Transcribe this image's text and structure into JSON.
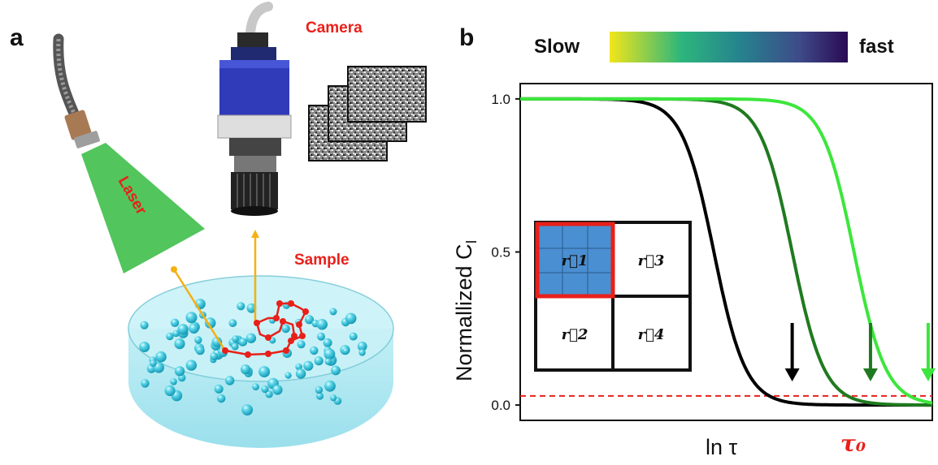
{
  "panel_a": {
    "letter": "a",
    "camera_label": "Camera",
    "laser_label": "Laser",
    "sample_label": "Sample",
    "colors": {
      "label": "#e8201a",
      "particle": "#3ec9e0",
      "trajectory": "#e8201a",
      "beam": "#f5b014",
      "laser_cone": "#3fbf4a",
      "camera_body": "#2f3bb8"
    }
  },
  "panel_b": {
    "letter": "b",
    "colorbar": {
      "left_label": "Slow",
      "right_label": "fast",
      "colors": [
        "#f2e61a",
        "#2db67c",
        "#26828e",
        "#3e4a89",
        "#2a0a52"
      ]
    },
    "grid_cells": [
      "r⃗1",
      "r⃗3",
      "r⃗2",
      "r⃗4"
    ],
    "tau_label": "τ₀",
    "chart_data": {
      "type": "line",
      "xlabel": "ln τ",
      "ylabel": "Normallized C_I",
      "y_ticks": [
        "0.0",
        "0.5",
        "1.0"
      ],
      "ylim": [
        -0.05,
        1.05
      ],
      "threshold": 0.03,
      "series": [
        {
          "color": "#000000",
          "x0": 0.47,
          "width": 0.085,
          "arrow_x": 0.66
        },
        {
          "color": "#1f7a1f",
          "x0": 0.66,
          "width": 0.085,
          "arrow_x": 0.85
        },
        {
          "color": "#3ce63c",
          "x0": 0.81,
          "width": 0.085,
          "arrow_x": 0.99
        }
      ]
    }
  }
}
